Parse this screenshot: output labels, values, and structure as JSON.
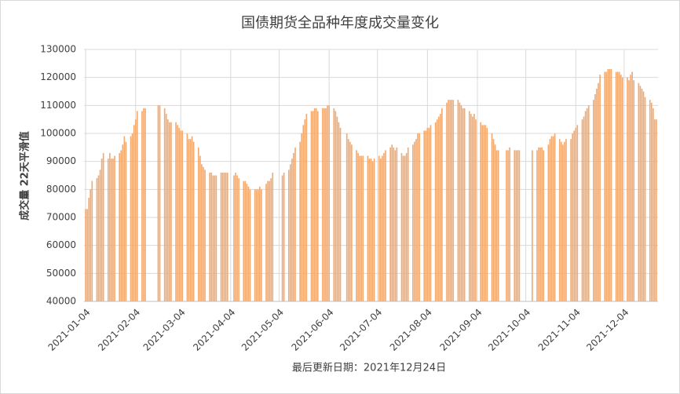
{
  "chart_data": {
    "type": "bar",
    "title": "国债期货全品种年度成交量变化",
    "y_label": "成交量 22天平滑值",
    "footnote": "最后更新日期：2021年12月24日",
    "color": "#f4a96e",
    "grid": true,
    "xlim": [
      "2021-01-03",
      "2021-12-25"
    ],
    "xticks": [
      "2021-01-04",
      "2021-02-04",
      "2021-03-04",
      "2021-04-04",
      "2021-05-04",
      "2021-06-04",
      "2021-07-04",
      "2021-08-04",
      "2021-09-04",
      "2021-10-04",
      "2021-11-04",
      "2021-12-04"
    ],
    "ylim": [
      40000,
      130000
    ],
    "yticks": [
      40000,
      50000,
      60000,
      70000,
      80000,
      90000,
      100000,
      110000,
      120000,
      130000
    ],
    "x": [
      "2021-01-04",
      "2021-01-05",
      "2021-01-06",
      "2021-01-07",
      "2021-01-08",
      "2021-01-11",
      "2021-01-12",
      "2021-01-13",
      "2021-01-14",
      "2021-01-15",
      "2021-01-18",
      "2021-01-19",
      "2021-01-20",
      "2021-01-21",
      "2021-01-22",
      "2021-01-25",
      "2021-01-26",
      "2021-01-27",
      "2021-01-28",
      "2021-01-29",
      "2021-02-01",
      "2021-02-02",
      "2021-02-03",
      "2021-02-04",
      "2021-02-05",
      "2021-02-08",
      "2021-02-09",
      "2021-02-10",
      "2021-02-18",
      "2021-02-19",
      "2021-02-22",
      "2021-02-23",
      "2021-02-24",
      "2021-02-25",
      "2021-02-26",
      "2021-03-01",
      "2021-03-02",
      "2021-03-03",
      "2021-03-04",
      "2021-03-05",
      "2021-03-08",
      "2021-03-09",
      "2021-03-10",
      "2021-03-11",
      "2021-03-12",
      "2021-03-15",
      "2021-03-16",
      "2021-03-17",
      "2021-03-18",
      "2021-03-19",
      "2021-03-22",
      "2021-03-23",
      "2021-03-24",
      "2021-03-25",
      "2021-03-26",
      "2021-03-29",
      "2021-03-30",
      "2021-03-31",
      "2021-04-01",
      "2021-04-02",
      "2021-04-06",
      "2021-04-07",
      "2021-04-08",
      "2021-04-09",
      "2021-04-12",
      "2021-04-13",
      "2021-04-14",
      "2021-04-15",
      "2021-04-16",
      "2021-04-19",
      "2021-04-20",
      "2021-04-21",
      "2021-04-22",
      "2021-04-23",
      "2021-04-26",
      "2021-04-27",
      "2021-04-28",
      "2021-04-29",
      "2021-04-30",
      "2021-05-06",
      "2021-05-07",
      "2021-05-10",
      "2021-05-11",
      "2021-05-12",
      "2021-05-13",
      "2021-05-14",
      "2021-05-17",
      "2021-05-18",
      "2021-05-19",
      "2021-05-20",
      "2021-05-21",
      "2021-05-24",
      "2021-05-25",
      "2021-05-26",
      "2021-05-27",
      "2021-05-28",
      "2021-05-31",
      "2021-06-01",
      "2021-06-02",
      "2021-06-03",
      "2021-06-04",
      "2021-06-07",
      "2021-06-08",
      "2021-06-09",
      "2021-06-10",
      "2021-06-11",
      "2021-06-15",
      "2021-06-16",
      "2021-06-17",
      "2021-06-18",
      "2021-06-21",
      "2021-06-22",
      "2021-06-23",
      "2021-06-24",
      "2021-06-25",
      "2021-06-28",
      "2021-06-29",
      "2021-06-30",
      "2021-07-01",
      "2021-07-02",
      "2021-07-05",
      "2021-07-06",
      "2021-07-07",
      "2021-07-08",
      "2021-07-09",
      "2021-07-12",
      "2021-07-13",
      "2021-07-14",
      "2021-07-15",
      "2021-07-16",
      "2021-07-19",
      "2021-07-20",
      "2021-07-21",
      "2021-07-22",
      "2021-07-23",
      "2021-07-26",
      "2021-07-27",
      "2021-07-28",
      "2021-07-29",
      "2021-07-30",
      "2021-08-02",
      "2021-08-03",
      "2021-08-04",
      "2021-08-05",
      "2021-08-06",
      "2021-08-09",
      "2021-08-10",
      "2021-08-11",
      "2021-08-12",
      "2021-08-13",
      "2021-08-16",
      "2021-08-17",
      "2021-08-18",
      "2021-08-19",
      "2021-08-20",
      "2021-08-23",
      "2021-08-24",
      "2021-08-25",
      "2021-08-26",
      "2021-08-27",
      "2021-08-30",
      "2021-08-31",
      "2021-09-01",
      "2021-09-02",
      "2021-09-03",
      "2021-09-06",
      "2021-09-07",
      "2021-09-08",
      "2021-09-09",
      "2021-09-10",
      "2021-09-13",
      "2021-09-14",
      "2021-09-15",
      "2021-09-16",
      "2021-09-17",
      "2021-09-22",
      "2021-09-23",
      "2021-09-24",
      "2021-09-27",
      "2021-09-28",
      "2021-09-29",
      "2021-09-30",
      "2021-10-08",
      "2021-10-11",
      "2021-10-12",
      "2021-10-13",
      "2021-10-14",
      "2021-10-15",
      "2021-10-18",
      "2021-10-19",
      "2021-10-20",
      "2021-10-21",
      "2021-10-22",
      "2021-10-25",
      "2021-10-26",
      "2021-10-27",
      "2021-10-28",
      "2021-10-29",
      "2021-11-01",
      "2021-11-02",
      "2021-11-03",
      "2021-11-04",
      "2021-11-05",
      "2021-11-08",
      "2021-11-09",
      "2021-11-10",
      "2021-11-11",
      "2021-11-12",
      "2021-11-15",
      "2021-11-16",
      "2021-11-17",
      "2021-11-18",
      "2021-11-19",
      "2021-11-22",
      "2021-11-23",
      "2021-11-24",
      "2021-11-25",
      "2021-11-26",
      "2021-11-29",
      "2021-11-30",
      "2021-12-01",
      "2021-12-02",
      "2021-12-03",
      "2021-12-06",
      "2021-12-07",
      "2021-12-08",
      "2021-12-09",
      "2021-12-10",
      "2021-12-13",
      "2021-12-14",
      "2021-12-15",
      "2021-12-16",
      "2021-12-17",
      "2021-12-20",
      "2021-12-21",
      "2021-12-22",
      "2021-12-23",
      "2021-12-24"
    ],
    "values": [
      73000,
      73000,
      77000,
      80000,
      83000,
      84000,
      85000,
      87000,
      91000,
      93000,
      91000,
      93000,
      91000,
      91000,
      92000,
      93000,
      94000,
      96000,
      99000,
      97000,
      99000,
      100000,
      103000,
      105000,
      108000,
      108000,
      109000,
      109000,
      110000,
      110000,
      109000,
      107000,
      105000,
      104000,
      104000,
      104000,
      103000,
      102000,
      101000,
      101000,
      100000,
      98000,
      98000,
      99000,
      97000,
      95000,
      92000,
      89000,
      88000,
      87000,
      86000,
      86000,
      85000,
      85000,
      85000,
      86000,
      86000,
      86000,
      86000,
      86000,
      85000,
      86000,
      85000,
      84000,
      83000,
      83000,
      82000,
      81000,
      80000,
      80000,
      80000,
      80000,
      81000,
      80000,
      82000,
      83000,
      83000,
      84000,
      86000,
      85000,
      86000,
      87000,
      89000,
      91000,
      93000,
      95000,
      97000,
      100000,
      103000,
      105000,
      107000,
      108000,
      108000,
      109000,
      109000,
      108000,
      109000,
      109000,
      109000,
      110000,
      110000,
      109000,
      108000,
      106000,
      104000,
      102000,
      100000,
      98000,
      97000,
      96000,
      94000,
      93000,
      92000,
      92000,
      92000,
      92000,
      91000,
      91000,
      90000,
      91000,
      92000,
      91000,
      92000,
      93000,
      94000,
      95000,
      96000,
      95000,
      94000,
      95000,
      93000,
      92000,
      92000,
      93000,
      95000,
      96000,
      97000,
      98000,
      100000,
      100000,
      101000,
      101000,
      102000,
      102000,
      103000,
      104000,
      105000,
      106000,
      107000,
      109000,
      111000,
      112000,
      112000,
      112000,
      112000,
      112000,
      111000,
      110000,
      109000,
      109000,
      108000,
      107000,
      106000,
      107000,
      105000,
      104000,
      103000,
      103000,
      103000,
      102000,
      100000,
      98000,
      96000,
      94000,
      94000,
      94000,
      94000,
      95000,
      94000,
      94000,
      94000,
      94000,
      94000,
      94000,
      95000,
      95000,
      95000,
      94000,
      96000,
      98000,
      99000,
      99000,
      100000,
      98000,
      97000,
      96000,
      97000,
      98000,
      98000,
      100000,
      101000,
      102000,
      103000,
      105000,
      106000,
      108000,
      109000,
      110000,
      112000,
      114000,
      116000,
      118000,
      121000,
      122000,
      122000,
      123000,
      123000,
      123000,
      122000,
      122000,
      122000,
      121000,
      120000,
      120000,
      119000,
      121000,
      122000,
      119000,
      118000,
      117000,
      116000,
      115000,
      113000,
      112000,
      111000,
      109000,
      105000,
      105000
    ]
  }
}
